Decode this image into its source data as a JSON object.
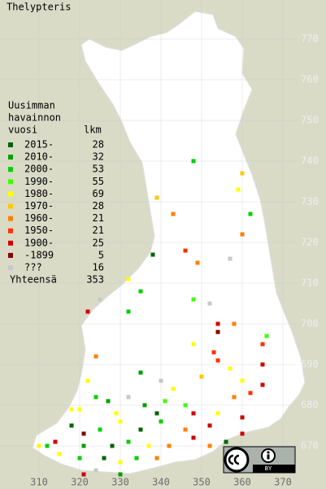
{
  "title": "Thelypteris",
  "legend": {
    "header": [
      "Uusimman",
      "havainnon",
      "vuosi"
    ],
    "count_header": "lkm",
    "items": [
      {
        "label": "2015-",
        "count": 28,
        "color": "#006400",
        "points": [
          [
            338,
            717
          ],
          [
            339,
            678
          ],
          [
            318,
            675
          ],
          [
            335,
            674
          ],
          [
            328,
            670
          ],
          [
            326,
            667
          ],
          [
            356,
            671
          ]
        ]
      },
      {
        "label": "2010-",
        "count": 32,
        "color": "#00a000",
        "points": [
          [
            335,
            688
          ],
          [
            336,
            680
          ],
          [
            327,
            681
          ],
          [
            321,
            670
          ],
          [
            330,
            663
          ]
        ]
      },
      {
        "label": "2000-",
        "count": 53,
        "color": "#00d000",
        "points": [
          [
            348,
            740
          ],
          [
            362,
            727
          ],
          [
            335,
            708
          ],
          [
            332,
            703
          ],
          [
            324,
            682
          ],
          [
            340,
            676
          ],
          [
            325,
            674
          ],
          [
            332,
            671
          ],
          [
            320,
            667
          ],
          [
            334,
            667
          ],
          [
            312,
            670
          ]
        ]
      },
      {
        "label": "1990-",
        "count": 55,
        "color": "#40ff00",
        "points": [
          [
            348,
            706
          ],
          [
            366,
            697
          ],
          [
            346,
            680
          ],
          [
            341,
            681
          ]
        ]
      },
      {
        "label": "1980-",
        "count": 69,
        "color": "#ffff00",
        "points": [
          [
            359,
            733
          ],
          [
            332,
            711
          ],
          [
            348,
            695
          ],
          [
            357,
            689
          ],
          [
            360,
            686
          ],
          [
            322,
            686
          ],
          [
            343,
            684
          ],
          [
            320,
            679
          ],
          [
            354,
            678
          ],
          [
            330,
            676
          ],
          [
            310,
            670
          ],
          [
            337,
            670
          ],
          [
            315,
            668
          ],
          [
            330,
            666
          ],
          [
            318,
            679
          ],
          [
            329,
            678
          ]
        ]
      },
      {
        "label": "1970-",
        "count": 28,
        "color": "#ffc800",
        "points": [
          [
            360,
            737
          ],
          [
            339,
            731
          ],
          [
            350,
            687
          ]
        ]
      },
      {
        "label": "1960-",
        "count": 21,
        "color": "#ff8000",
        "points": [
          [
            343,
            727
          ],
          [
            360,
            722
          ],
          [
            349,
            715
          ],
          [
            358,
            700
          ],
          [
            324,
            692
          ],
          [
            358,
            682
          ],
          [
            346,
            674
          ],
          [
            342,
            670
          ],
          [
            339,
            667
          ],
          [
            352,
            670
          ]
        ]
      },
      {
        "label": "1950-",
        "count": 21,
        "color": "#ff3000",
        "points": [
          [
            346,
            718
          ],
          [
            365,
            695
          ],
          [
            353,
            693
          ],
          [
            354,
            691
          ],
          [
            362,
            683
          ]
        ]
      },
      {
        "label": "1900-",
        "count": 25,
        "color": "#d00000",
        "points": [
          [
            322,
            703
          ],
          [
            354,
            700
          ],
          [
            365,
            690
          ],
          [
            365,
            685
          ],
          [
            348,
            678
          ],
          [
            360,
            677
          ],
          [
            352,
            675
          ],
          [
            314,
            671
          ],
          [
            348,
            672
          ],
          [
            360,
            673
          ],
          [
            321,
            663
          ]
        ]
      },
      {
        "label": "-1899",
        "count": 5,
        "color": "#800000",
        "points": [
          [
            354,
            698
          ],
          [
            321,
            673
          ]
        ]
      },
      {
        "label": "???",
        "count": 16,
        "color": "#c8c8c8",
        "points": [
          [
            357,
            716
          ],
          [
            325,
            706
          ],
          [
            352,
            705
          ],
          [
            340,
            686
          ],
          [
            332,
            682
          ],
          [
            324,
            664
          ]
        ]
      }
    ],
    "total_label": "Yhteensä",
    "total": 353
  },
  "axes": {
    "xticks": [
      310,
      320,
      330,
      340,
      350,
      360,
      370
    ],
    "yticks": [
      670,
      680,
      690,
      700,
      710,
      720,
      730,
      740,
      750,
      760,
      770
    ]
  },
  "license": {
    "label": "BY"
  }
}
